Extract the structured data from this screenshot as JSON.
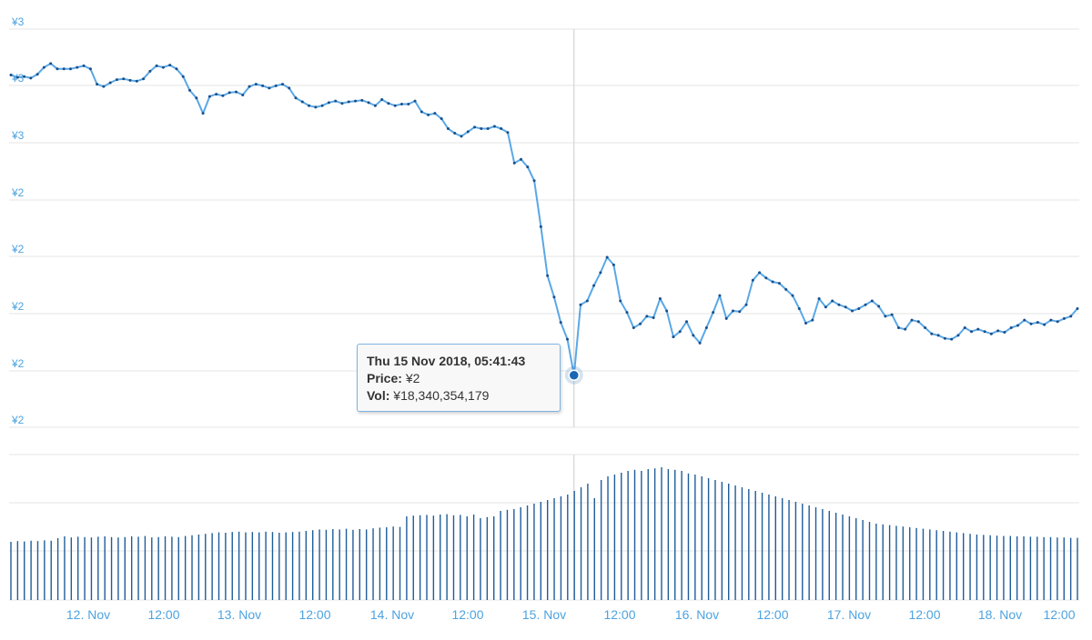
{
  "chart_data": [
    {
      "type": "line",
      "y_axis": {
        "tick_labels": [
          "¥3",
          "¥3",
          "¥3",
          "¥2",
          "¥2",
          "¥2",
          "¥2",
          "¥2"
        ]
      },
      "x_axis": {
        "tick_labels": [
          "12. Nov",
          "12:00",
          "13. Nov",
          "12:00",
          "14. Nov",
          "12:00",
          "15. Nov",
          "12:00",
          "16. Nov",
          "12:00",
          "17. Nov",
          "12:00",
          "18. Nov",
          "12:00"
        ]
      },
      "x_start": "2018-11-11 09:00",
      "x_end": "2018-11-18 13:00",
      "series": [
        {
          "values": [
            2.92,
            2.917,
            2.918,
            2.916,
            2.921,
            2.93,
            2.935,
            2.928,
            2.928,
            2.928,
            2.93,
            2.932,
            2.928,
            2.908,
            2.905,
            2.91,
            2.914,
            2.915,
            2.913,
            2.912,
            2.915,
            2.925,
            2.932,
            2.93,
            2.933,
            2.928,
            2.918,
            2.9,
            2.89,
            2.87,
            2.892,
            2.895,
            2.893,
            2.897,
            2.898,
            2.894,
            2.905,
            2.908,
            2.906,
            2.903,
            2.906,
            2.908,
            2.903,
            2.89,
            2.885,
            2.88,
            2.878,
            2.88,
            2.884,
            2.886,
            2.883,
            2.885,
            2.886,
            2.887,
            2.884,
            2.88,
            2.888,
            2.883,
            2.88,
            2.882,
            2.882,
            2.886,
            2.872,
            2.868,
            2.87,
            2.863,
            2.85,
            2.844,
            2.84,
            2.846,
            2.852,
            2.85,
            2.85,
            2.853,
            2.85,
            2.845,
            2.805,
            2.81,
            2.8,
            2.782,
            2.722,
            2.658,
            2.63,
            2.597,
            2.575,
            2.528,
            2.62,
            2.625,
            2.645,
            2.662,
            2.682,
            2.672,
            2.625,
            2.61,
            2.59,
            2.595,
            2.605,
            2.603,
            2.628,
            2.612,
            2.578,
            2.585,
            2.598,
            2.58,
            2.57,
            2.59,
            2.61,
            2.632,
            2.602,
            2.612,
            2.611,
            2.62,
            2.652,
            2.662,
            2.655,
            2.65,
            2.648,
            2.64,
            2.632,
            2.615,
            2.596,
            2.6,
            2.628,
            2.617,
            2.625,
            2.62,
            2.617,
            2.612,
            2.615,
            2.62,
            2.625,
            2.618,
            2.605,
            2.607,
            2.59,
            2.588,
            2.6,
            2.598,
            2.59,
            2.582,
            2.58,
            2.576,
            2.575,
            2.58,
            2.59,
            2.585,
            2.588,
            2.585,
            2.582,
            2.586,
            2.584,
            2.59,
            2.593,
            2.6,
            2.595,
            2.597,
            2.594,
            2.6,
            2.598,
            2.602,
            2.605,
            2.615
          ]
        }
      ]
    },
    {
      "type": "bar",
      "series": [
        {
          "values": [
            16.0,
            16.2,
            16.1,
            16.3,
            16.2,
            16.4,
            16.3,
            17.0,
            17.5,
            17.2,
            17.4,
            17.3,
            17.2,
            17.4,
            17.5,
            17.3,
            17.2,
            17.3,
            17.5,
            17.4,
            17.6,
            17.2,
            17.3,
            17.5,
            17.4,
            17.3,
            17.6,
            17.8,
            18.0,
            18.2,
            18.4,
            18.6,
            18.5,
            18.7,
            18.8,
            18.6,
            18.7,
            18.6,
            18.8,
            18.7,
            18.5,
            18.6,
            18.7,
            18.8,
            19.0,
            19.2,
            19.4,
            19.3,
            19.5,
            19.4,
            19.6,
            19.3,
            19.5,
            19.4,
            19.7,
            19.9,
            20.0,
            20.2,
            20.1,
            23.0,
            23.2,
            23.3,
            23.4,
            23.2,
            23.5,
            23.6,
            23.3,
            23.4,
            23.0,
            23.5,
            22.5,
            22.8,
            23.0,
            24.5,
            24.8,
            25.0,
            25.5,
            26.0,
            26.5,
            27.0,
            27.5,
            28.0,
            28.5,
            29.0,
            30.0,
            31.0,
            32.0,
            28.0,
            33.0,
            34.0,
            34.5,
            35.0,
            35.5,
            35.8,
            35.5,
            36.0,
            36.2,
            36.5,
            36.0,
            35.8,
            35.5,
            34.8,
            34.5,
            34.0,
            33.5,
            33.0,
            32.5,
            32.0,
            31.5,
            31.0,
            30.5,
            30.0,
            29.5,
            29.0,
            28.5,
            28.0,
            27.5,
            27.0,
            26.5,
            26.0,
            25.5,
            25.0,
            24.5,
            24.0,
            23.5,
            23.0,
            22.5,
            22.0,
            21.5,
            21.0,
            20.8,
            20.6,
            20.4,
            20.2,
            20.0,
            19.8,
            19.6,
            19.4,
            19.2,
            19.0,
            18.8,
            18.6,
            18.4,
            18.2,
            18.0,
            17.9,
            17.8,
            17.7,
            17.6,
            17.6,
            17.5,
            17.5,
            17.4,
            17.4,
            17.3,
            17.3,
            17.2,
            17.2,
            17.1,
            17.1
          ]
        }
      ]
    }
  ],
  "tooltip": {
    "datetime": "Thu 15 Nov 2018, 05:41:43",
    "price_label": "Price:",
    "price_value": "¥2",
    "vol_label": "Vol:",
    "vol_value": "¥18,340,354,179",
    "point_y": 2.528
  },
  "colors": {
    "line": "#5aa8e6",
    "marker": "#1a4f8a",
    "highlight": "#1a66b3",
    "volume": "#1f5c99",
    "grid": "#e6e6e6",
    "axis_text": "#4da3e0",
    "crosshair": "#cccccc"
  }
}
